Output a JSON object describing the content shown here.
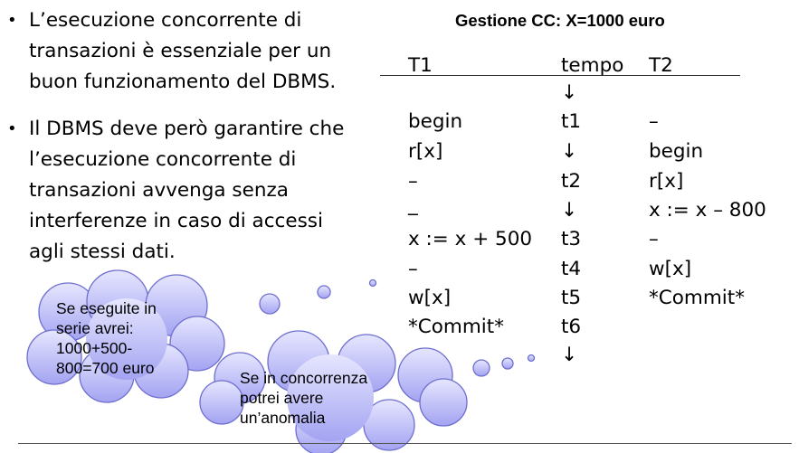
{
  "bullets": [
    {
      "marker": "•",
      "text": "L’esecuzione concorrente di transazioni è essenziale per un buon funzionamento del DBMS."
    },
    {
      "marker": "•",
      "text": "Il DBMS deve però garantire che l’esecuzione concorrente di transazioni avvenga senza interferenze in caso di accessi agli stessi dati."
    }
  ],
  "title": "Gestione CC: X=1000 euro",
  "table": {
    "headers": [
      "T1",
      "tempo",
      "T2"
    ],
    "rows": [
      [
        "",
        "↓",
        ""
      ],
      [
        "begin",
        "t1",
        "–"
      ],
      [
        "r[x]",
        "↓",
        "begin"
      ],
      [
        "–",
        "t2",
        "r[x]"
      ],
      [
        "_",
        "↓",
        "x := x – 800"
      ],
      [
        "x := x + 500",
        "t3",
        "–"
      ],
      [
        "–",
        "t4",
        "w[x]"
      ],
      [
        "w[x]",
        "t5",
        "*Commit*"
      ],
      [
        "*Commit*",
        "t6",
        ""
      ],
      [
        "",
        "↓",
        ""
      ]
    ]
  },
  "callouts": {
    "serie": "Se eseguite in serie avrei: 1000+500-800=700 euro",
    "concorrenza": "Se in concorrenza potrei avere un’anomalia"
  },
  "colors": {
    "cloud_fill_light": "#dcdcff",
    "cloud_fill_dark": "#9b9bf0",
    "cloud_stroke": "#6e6ed0"
  }
}
